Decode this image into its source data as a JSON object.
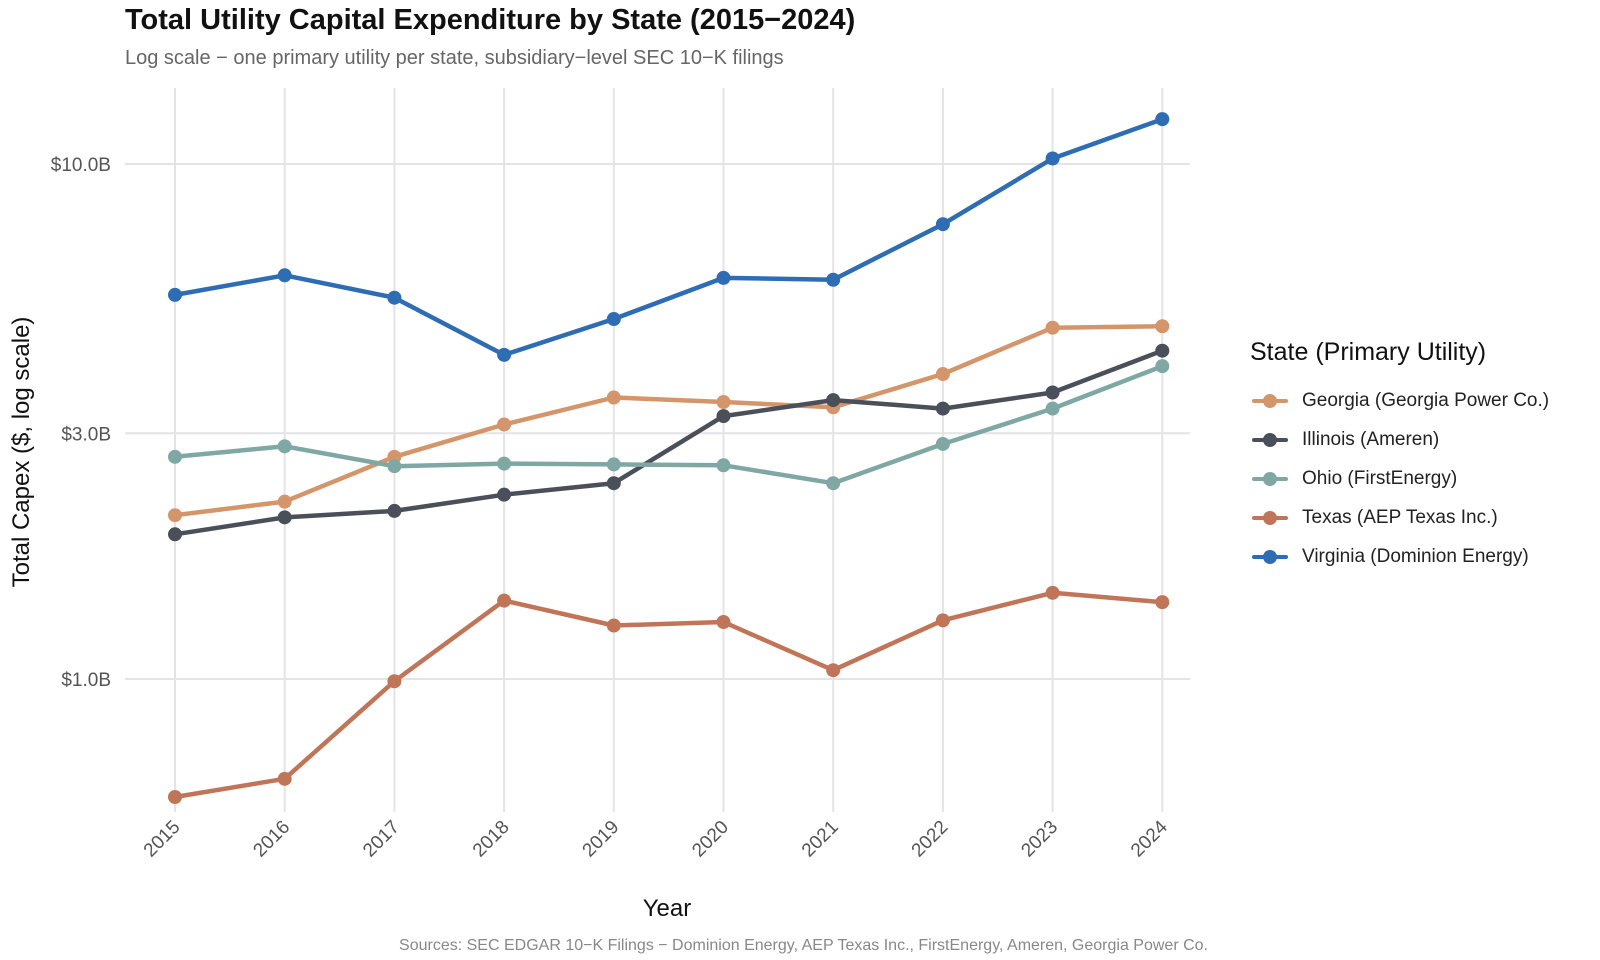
{
  "chart_data": {
    "type": "line",
    "title": "Total Utility Capital Expenditure by State (2015−2024)",
    "subtitle": "Log scale − one primary utility per state, subsidiary−level SEC 10−K filings",
    "caption": "Sources: SEC EDGAR 10−K Filings − Dominion Energy, AEP Texas Inc., FirstEnergy, Ameren, Georgia Power Co.",
    "xlabel": "Year",
    "ylabel": "Total Capex ($, log scale)",
    "yscale": "log",
    "ylim": [
      0.5,
      15
    ],
    "yticks": [
      1.0,
      3.0,
      10.0
    ],
    "ytick_labels": [
      "$1.0B",
      "$3.0B",
      "$10.0B"
    ],
    "x": [
      "2015",
      "2016",
      "2017",
      "2018",
      "2019",
      "2020",
      "2021",
      "2022",
      "2023",
      "2024"
    ],
    "legend_title": "State (Primary Utility)",
    "legend_position": "right",
    "grid": true,
    "series": [
      {
        "name": "Georgia (Georgia Power Co.)",
        "color": "#D4956B",
        "values": [
          2.08,
          2.21,
          2.7,
          3.12,
          3.52,
          3.45,
          3.37,
          3.91,
          4.81,
          4.84
        ]
      },
      {
        "name": "Illinois (Ameren)",
        "color": "#4A4F5A",
        "values": [
          1.91,
          2.06,
          2.12,
          2.28,
          2.4,
          3.24,
          3.48,
          3.35,
          3.6,
          4.34
        ]
      },
      {
        "name": "Ohio (FirstEnergy)",
        "color": "#7FA8A4",
        "values": [
          2.7,
          2.83,
          2.59,
          2.62,
          2.61,
          2.6,
          2.4,
          2.86,
          3.35,
          4.05
        ]
      },
      {
        "name": "Texas (AEP Texas Inc.)",
        "color": "#C07558",
        "values": [
          0.59,
          0.64,
          0.99,
          1.42,
          1.27,
          1.29,
          1.04,
          1.3,
          1.47,
          1.41
        ]
      },
      {
        "name": "Virginia (Dominion Energy)",
        "color": "#2E6DB4",
        "values": [
          5.57,
          6.08,
          5.5,
          4.26,
          5.0,
          6.01,
          5.96,
          7.64,
          10.25,
          12.22
        ]
      }
    ]
  }
}
